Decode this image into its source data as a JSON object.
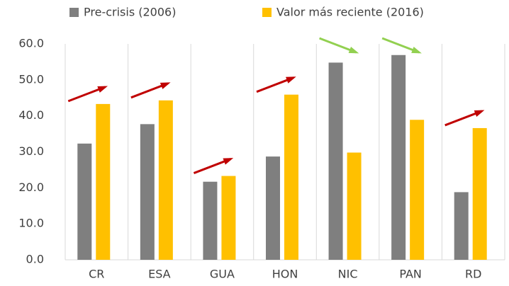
{
  "chart_data": {
    "type": "bar",
    "categories": [
      "CR",
      "ESA",
      "GUA",
      "HON",
      "NIC",
      "PAN",
      "RD"
    ],
    "series": [
      {
        "name": "Pre-crisis (2006)",
        "color": "#7f7f7f",
        "values": [
          32.3,
          37.7,
          21.7,
          28.7,
          54.8,
          56.9,
          18.8
        ]
      },
      {
        "name": "Valor más reciente (2016)",
        "color": "#ffc000",
        "values": [
          43.3,
          44.3,
          23.3,
          45.9,
          29.8,
          38.9,
          36.6
        ]
      }
    ],
    "ylim": [
      0,
      60
    ],
    "yticks": [
      {
        "value": 0,
        "label": "0.0"
      },
      {
        "value": 10,
        "label": "10.0"
      },
      {
        "value": 20,
        "label": "20.0"
      },
      {
        "value": 30,
        "label": "30.0"
      },
      {
        "value": 40,
        "label": "40.0"
      },
      {
        "value": 50,
        "label": "50.0"
      },
      {
        "value": 60,
        "label": "60.0"
      }
    ],
    "legend": "top"
  }
}
